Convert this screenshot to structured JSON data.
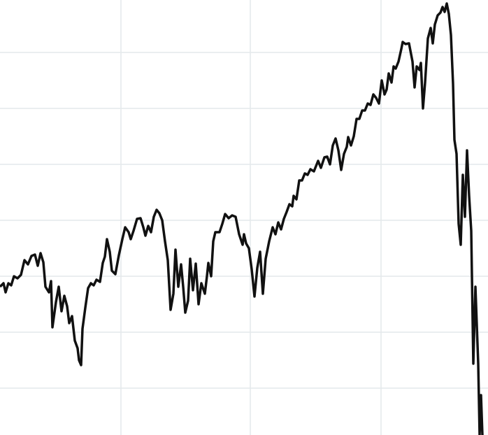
{
  "chart_data": {
    "type": "line",
    "x": [
      0,
      5,
      8,
      12,
      16,
      20,
      25,
      30,
      35,
      40,
      45,
      50,
      54,
      58,
      62,
      65,
      70,
      73,
      75,
      80,
      84,
      88,
      92,
      96,
      99,
      103,
      107,
      111,
      113,
      116,
      118,
      122,
      126,
      130,
      134,
      138,
      143,
      147,
      150,
      153,
      157,
      160,
      165,
      170,
      175,
      179,
      184,
      187,
      191,
      196,
      201,
      205,
      208,
      212,
      216,
      220,
      224,
      228,
      232,
      236,
      240,
      244,
      248,
      251,
      255,
      259,
      262,
      265,
      269,
      272,
      276,
      280,
      284,
      288,
      293,
      296,
      298,
      302,
      305,
      308,
      314,
      318,
      322,
      327,
      332,
      337,
      342,
      347,
      349,
      352,
      356,
      360,
      364,
      368,
      372,
      376,
      380,
      385,
      390,
      394,
      398,
      402,
      406,
      410,
      414,
      418,
      420,
      424,
      428,
      432,
      436,
      440,
      444,
      449,
      455,
      459,
      464,
      468,
      472,
      476,
      480,
      484,
      488,
      492,
      496,
      498,
      502,
      506,
      510,
      514,
      518,
      522,
      526,
      530,
      534,
      538,
      542,
      546,
      550,
      553,
      556,
      560,
      563,
      566,
      570,
      574,
      576,
      580,
      585,
      590,
      593,
      596,
      600,
      602,
      605,
      608,
      612,
      616,
      619,
      622,
      626,
      630,
      633,
      636,
      639,
      642,
      645,
      648,
      650,
      653,
      656,
      659,
      662,
      665,
      668,
      671,
      674,
      677,
      680,
      684,
      686,
      688,
      690
    ],
    "values": [
      212,
      217,
      204,
      217,
      214,
      227,
      224,
      229,
      250,
      244,
      256,
      258,
      242,
      260,
      247,
      212,
      204,
      220,
      154,
      190,
      212,
      177,
      199,
      184,
      160,
      170,
      135,
      124,
      107,
      100,
      152,
      182,
      210,
      217,
      214,
      222,
      219,
      246,
      255,
      280,
      262,
      235,
      230,
      257,
      280,
      297,
      290,
      280,
      292,
      309,
      310,
      297,
      285,
      299,
      290,
      312,
      322,
      317,
      307,
      277,
      250,
      179,
      202,
      265,
      212,
      244,
      212,
      175,
      192,
      252,
      207,
      245,
      187,
      217,
      202,
      227,
      246,
      227,
      277,
      290,
      290,
      302,
      316,
      310,
      314,
      312,
      287,
      272,
      287,
      274,
      267,
      237,
      198,
      239,
      262,
      202,
      252,
      277,
      297,
      287,
      304,
      294,
      309,
      319,
      330,
      327,
      342,
      337,
      364,
      364,
      374,
      372,
      380,
      377,
      392,
      382,
      397,
      398,
      387,
      414,
      424,
      407,
      379,
      402,
      412,
      426,
      414,
      427,
      452,
      452,
      464,
      464,
      474,
      472,
      487,
      482,
      474,
      507,
      487,
      494,
      517,
      504,
      527,
      524,
      534,
      552,
      562,
      559,
      560,
      534,
      497,
      527,
      522,
      532,
      467,
      504,
      567,
      582,
      560,
      587,
      600,
      604,
      612,
      605,
      617,
      602,
      572,
      502,
      422,
      402,
      302,
      272,
      372,
      312,
      407,
      342,
      292,
      102,
      212,
      102,
      0,
      57,
      0
    ],
    "color": "#111111",
    "xlim": [
      0,
      698
    ],
    "xticks": [
      173,
      358,
      545
    ],
    "ylim": [
      0,
      622
    ],
    "yticks": [
      67,
      147,
      227,
      307,
      387,
      467,
      547
    ],
    "grid": true
  }
}
